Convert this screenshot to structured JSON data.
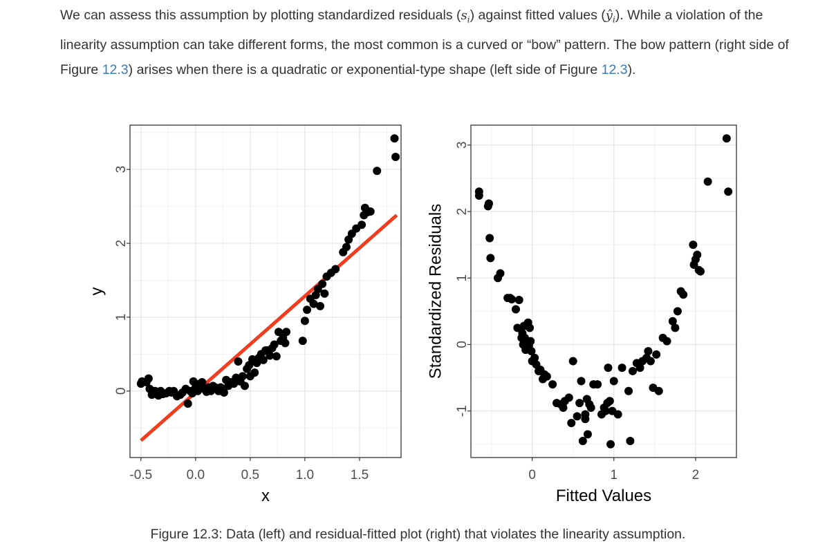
{
  "paragraph": {
    "s1": "We can assess this assumption by plotting standardized residuals (",
    "m1": "s",
    "m1sub": "i",
    "s2": ") against fitted values (",
    "m2": "ŷ",
    "m2sub": "i",
    "s3": "). While a violation of the linearity assumption can take different forms, the most common is a curved or “bow” pattern. The bow pattern (right side of Figure ",
    "link1": "12.3",
    "s4": ") arises when there is a quadratic or exponential-type shape (left side of Figure ",
    "link2": "12.3",
    "s5": ")."
  },
  "caption": "Figure 12.3: Data (left) and residual-fitted plot (right) that violates the linearity assumption.",
  "chart_data": [
    {
      "type": "scatter",
      "title": "",
      "xlabel": "x",
      "ylabel": "y",
      "xlim": [
        -0.6,
        1.88
      ],
      "ylim": [
        -0.9,
        3.6
      ],
      "xticks": [
        -0.5,
        0.0,
        0.5,
        1.0,
        1.5
      ],
      "xtick_labels": [
        "-0.5",
        "0.0",
        "0.5",
        "1.0",
        "1.5"
      ],
      "yticks": [
        0,
        1,
        2,
        3
      ],
      "ytick_labels": [
        "0",
        "1",
        "2",
        "3"
      ],
      "grid": true,
      "point_color": "#000000",
      "line_color": "#f03c1f",
      "fit_line": {
        "x": [
          -0.5,
          1.84
        ],
        "y": [
          -0.67,
          2.38
        ]
      },
      "points": [
        [
          -0.5,
          0.1
        ],
        [
          -0.49,
          0.13
        ],
        [
          -0.45,
          0.12
        ],
        [
          -0.43,
          0.17
        ],
        [
          -0.42,
          0.03
        ],
        [
          -0.4,
          -0.05
        ],
        [
          -0.37,
          0.0
        ],
        [
          -0.34,
          -0.06
        ],
        [
          -0.32,
          0.0
        ],
        [
          -0.3,
          -0.04
        ],
        [
          -0.27,
          -0.03
        ],
        [
          -0.24,
          0.0
        ],
        [
          -0.22,
          -0.02
        ],
        [
          -0.2,
          0.0
        ],
        [
          -0.17,
          -0.07
        ],
        [
          -0.14,
          -0.05
        ],
        [
          -0.12,
          -0.02
        ],
        [
          -0.09,
          0.03
        ],
        [
          -0.07,
          -0.17
        ],
        [
          -0.05,
          0.0
        ],
        [
          -0.03,
          -0.03
        ],
        [
          -0.02,
          0.13
        ],
        [
          0.0,
          0.05
        ],
        [
          0.02,
          0.0
        ],
        [
          0.04,
          0.1
        ],
        [
          0.06,
          0.12
        ],
        [
          0.08,
          0.03
        ],
        [
          0.1,
          -0.01
        ],
        [
          0.12,
          0.05
        ],
        [
          0.14,
          0.0
        ],
        [
          0.16,
          0.07
        ],
        [
          0.18,
          0.05
        ],
        [
          0.21,
          0.0
        ],
        [
          0.23,
          0.05
        ],
        [
          0.26,
          -0.02
        ],
        [
          0.28,
          0.15
        ],
        [
          0.3,
          0.07
        ],
        [
          0.32,
          0.12
        ],
        [
          0.35,
          0.1
        ],
        [
          0.37,
          0.18
        ],
        [
          0.39,
          0.4
        ],
        [
          0.41,
          0.13
        ],
        [
          0.43,
          0.2
        ],
        [
          0.45,
          0.07
        ],
        [
          0.47,
          0.3
        ],
        [
          0.49,
          0.35
        ],
        [
          0.5,
          0.2
        ],
        [
          0.52,
          0.43
        ],
        [
          0.54,
          0.25
        ],
        [
          0.56,
          0.38
        ],
        [
          0.58,
          0.45
        ],
        [
          0.6,
          0.5
        ],
        [
          0.62,
          0.42
        ],
        [
          0.64,
          0.55
        ],
        [
          0.66,
          0.55
        ],
        [
          0.68,
          0.48
        ],
        [
          0.7,
          0.58
        ],
        [
          0.72,
          0.63
        ],
        [
          0.74,
          0.47
        ],
        [
          0.76,
          0.8
        ],
        [
          0.78,
          0.68
        ],
        [
          0.8,
          0.72
        ],
        [
          0.82,
          0.65
        ],
        [
          0.83,
          0.8
        ],
        [
          0.98,
          0.68
        ],
        [
          1.0,
          0.95
        ],
        [
          1.02,
          1.1
        ],
        [
          1.05,
          1.25
        ],
        [
          1.08,
          1.18
        ],
        [
          1.1,
          1.3
        ],
        [
          1.12,
          1.38
        ],
        [
          1.14,
          1.15
        ],
        [
          1.16,
          1.45
        ],
        [
          1.18,
          1.32
        ],
        [
          1.2,
          1.55
        ],
        [
          1.24,
          1.6
        ],
        [
          1.28,
          1.65
        ],
        [
          1.35,
          1.88
        ],
        [
          1.38,
          1.95
        ],
        [
          1.4,
          2.05
        ],
        [
          1.43,
          2.13
        ],
        [
          1.47,
          2.2
        ],
        [
          1.52,
          2.25
        ],
        [
          1.54,
          2.38
        ],
        [
          1.55,
          2.48
        ],
        [
          1.57,
          2.42
        ],
        [
          1.6,
          2.43
        ],
        [
          1.66,
          2.98
        ],
        [
          1.82,
          3.42
        ],
        [
          1.83,
          3.17
        ]
      ]
    },
    {
      "type": "scatter",
      "title": "",
      "xlabel": "Fitted Values",
      "ylabel": "Standardized Residuals",
      "xlim": [
        -0.75,
        2.5
      ],
      "ylim": [
        -1.7,
        3.3
      ],
      "xticks": [
        0,
        1,
        2
      ],
      "xtick_labels": [
        "0",
        "1",
        "2"
      ],
      "yticks": [
        -1,
        0,
        1,
        2,
        3
      ],
      "ytick_labels": [
        "-1",
        "0",
        "1",
        "2",
        "3"
      ],
      "grid": true,
      "point_color": "#000000",
      "points": [
        [
          -0.65,
          2.3
        ],
        [
          -0.65,
          2.24
        ],
        [
          -0.54,
          2.08
        ],
        [
          -0.53,
          2.12
        ],
        [
          -0.52,
          1.6
        ],
        [
          -0.51,
          1.3
        ],
        [
          -0.42,
          1.0
        ],
        [
          -0.39,
          1.07
        ],
        [
          -0.3,
          0.7
        ],
        [
          -0.27,
          0.7
        ],
        [
          -0.25,
          0.68
        ],
        [
          -0.2,
          0.53
        ],
        [
          -0.18,
          0.25
        ],
        [
          -0.16,
          0.67
        ],
        [
          -0.13,
          0.1
        ],
        [
          -0.12,
          0.17
        ],
        [
          -0.11,
          0.0
        ],
        [
          -0.1,
          0.28
        ],
        [
          -0.09,
          0.1
        ],
        [
          -0.08,
          -0.08
        ],
        [
          -0.07,
          0.03
        ],
        [
          -0.06,
          -0.02
        ],
        [
          -0.05,
          0.33
        ],
        [
          -0.04,
          -0.02
        ],
        [
          -0.03,
          0.25
        ],
        [
          -0.02,
          0.05
        ],
        [
          -0.01,
          -0.1
        ],
        [
          0.0,
          -0.25
        ],
        [
          0.03,
          -0.2
        ],
        [
          0.05,
          -0.3
        ],
        [
          0.08,
          -0.4
        ],
        [
          0.1,
          -0.38
        ],
        [
          0.13,
          -0.52
        ],
        [
          0.15,
          -0.45
        ],
        [
          0.18,
          -0.48
        ],
        [
          0.25,
          -0.6
        ],
        [
          0.3,
          -0.88
        ],
        [
          0.35,
          -0.9
        ],
        [
          0.38,
          -0.95
        ],
        [
          0.4,
          -0.85
        ],
        [
          0.45,
          -0.8
        ],
        [
          0.48,
          -1.18
        ],
        [
          0.5,
          -0.25
        ],
        [
          0.55,
          -1.08
        ],
        [
          0.58,
          -0.88
        ],
        [
          0.6,
          -0.55
        ],
        [
          0.62,
          -1.45
        ],
        [
          0.65,
          -1.12
        ],
        [
          0.65,
          -1.05
        ],
        [
          0.67,
          -0.82
        ],
        [
          0.68,
          -1.35
        ],
        [
          0.7,
          -0.9
        ],
        [
          0.72,
          -0.95
        ],
        [
          0.75,
          -0.6
        ],
        [
          0.8,
          -0.6
        ],
        [
          0.85,
          -1.05
        ],
        [
          0.88,
          -0.95
        ],
        [
          0.9,
          -1.0
        ],
        [
          0.92,
          -0.88
        ],
        [
          0.93,
          -0.35
        ],
        [
          0.95,
          -0.85
        ],
        [
          0.96,
          -1.5
        ],
        [
          0.98,
          -1.0
        ],
        [
          1.0,
          -0.55
        ],
        [
          1.05,
          -1.05
        ],
        [
          1.1,
          -0.35
        ],
        [
          1.18,
          -0.7
        ],
        [
          1.2,
          -1.45
        ],
        [
          1.23,
          -0.4
        ],
        [
          1.28,
          -0.28
        ],
        [
          1.32,
          -0.35
        ],
        [
          1.35,
          -0.25
        ],
        [
          1.4,
          -0.2
        ],
        [
          1.42,
          -0.1
        ],
        [
          1.45,
          -0.25
        ],
        [
          1.48,
          -0.65
        ],
        [
          1.52,
          -0.15
        ],
        [
          1.55,
          -0.7
        ],
        [
          1.6,
          0.1
        ],
        [
          1.65,
          0.05
        ],
        [
          1.72,
          0.35
        ],
        [
          1.75,
          0.25
        ],
        [
          1.78,
          0.5
        ],
        [
          1.82,
          0.8
        ],
        [
          1.85,
          0.75
        ],
        [
          1.97,
          1.5
        ],
        [
          1.98,
          1.2
        ],
        [
          2.0,
          1.28
        ],
        [
          2.02,
          1.35
        ],
        [
          2.04,
          1.12
        ],
        [
          2.06,
          1.1
        ],
        [
          2.15,
          2.45
        ],
        [
          2.38,
          3.1
        ],
        [
          2.4,
          2.3
        ]
      ]
    }
  ]
}
